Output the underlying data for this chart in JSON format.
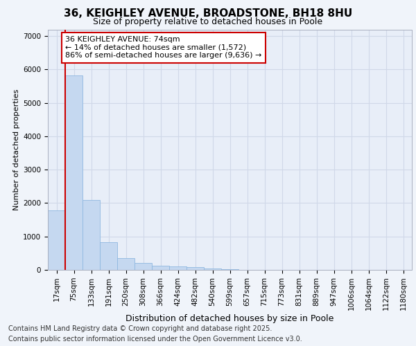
{
  "title": "36, KEIGHLEY AVENUE, BROADSTONE, BH18 8HU",
  "subtitle": "Size of property relative to detached houses in Poole",
  "xlabel": "Distribution of detached houses by size in Poole",
  "ylabel": "Number of detached properties",
  "categories": [
    "17sqm",
    "75sqm",
    "133sqm",
    "191sqm",
    "250sqm",
    "308sqm",
    "366sqm",
    "424sqm",
    "482sqm",
    "540sqm",
    "599sqm",
    "657sqm",
    "715sqm",
    "773sqm",
    "831sqm",
    "889sqm",
    "947sqm",
    "1006sqm",
    "1064sqm",
    "1122sqm",
    "1180sqm"
  ],
  "values": [
    1780,
    5820,
    2090,
    820,
    360,
    210,
    130,
    100,
    80,
    50,
    30,
    0,
    0,
    0,
    0,
    0,
    0,
    0,
    0,
    0,
    0
  ],
  "bar_color": "#c5d8f0",
  "bar_edgecolor": "#8fb8e0",
  "vline_x": 0.5,
  "vline_color": "#cc0000",
  "annotation_line1": "36 KEIGHLEY AVENUE: 74sqm",
  "annotation_line2": "← 14% of detached houses are smaller (1,572)",
  "annotation_line3": "86% of semi-detached houses are larger (9,636) →",
  "annotation_box_edgecolor": "#cc0000",
  "annotation_box_facecolor": "#ffffff",
  "ylim": [
    0,
    7200
  ],
  "yticks": [
    0,
    1000,
    2000,
    3000,
    4000,
    5000,
    6000,
    7000
  ],
  "bg_color": "#f0f4fa",
  "plot_bg_color": "#e8eef8",
  "grid_color": "#d0d8e8",
  "footer1": "Contains HM Land Registry data © Crown copyright and database right 2025.",
  "footer2": "Contains public sector information licensed under the Open Government Licence v3.0.",
  "title_fontsize": 11,
  "subtitle_fontsize": 9,
  "ylabel_fontsize": 8,
  "xlabel_fontsize": 9,
  "tick_fontsize": 7.5,
  "annotation_fontsize": 8,
  "footer_fontsize": 7
}
